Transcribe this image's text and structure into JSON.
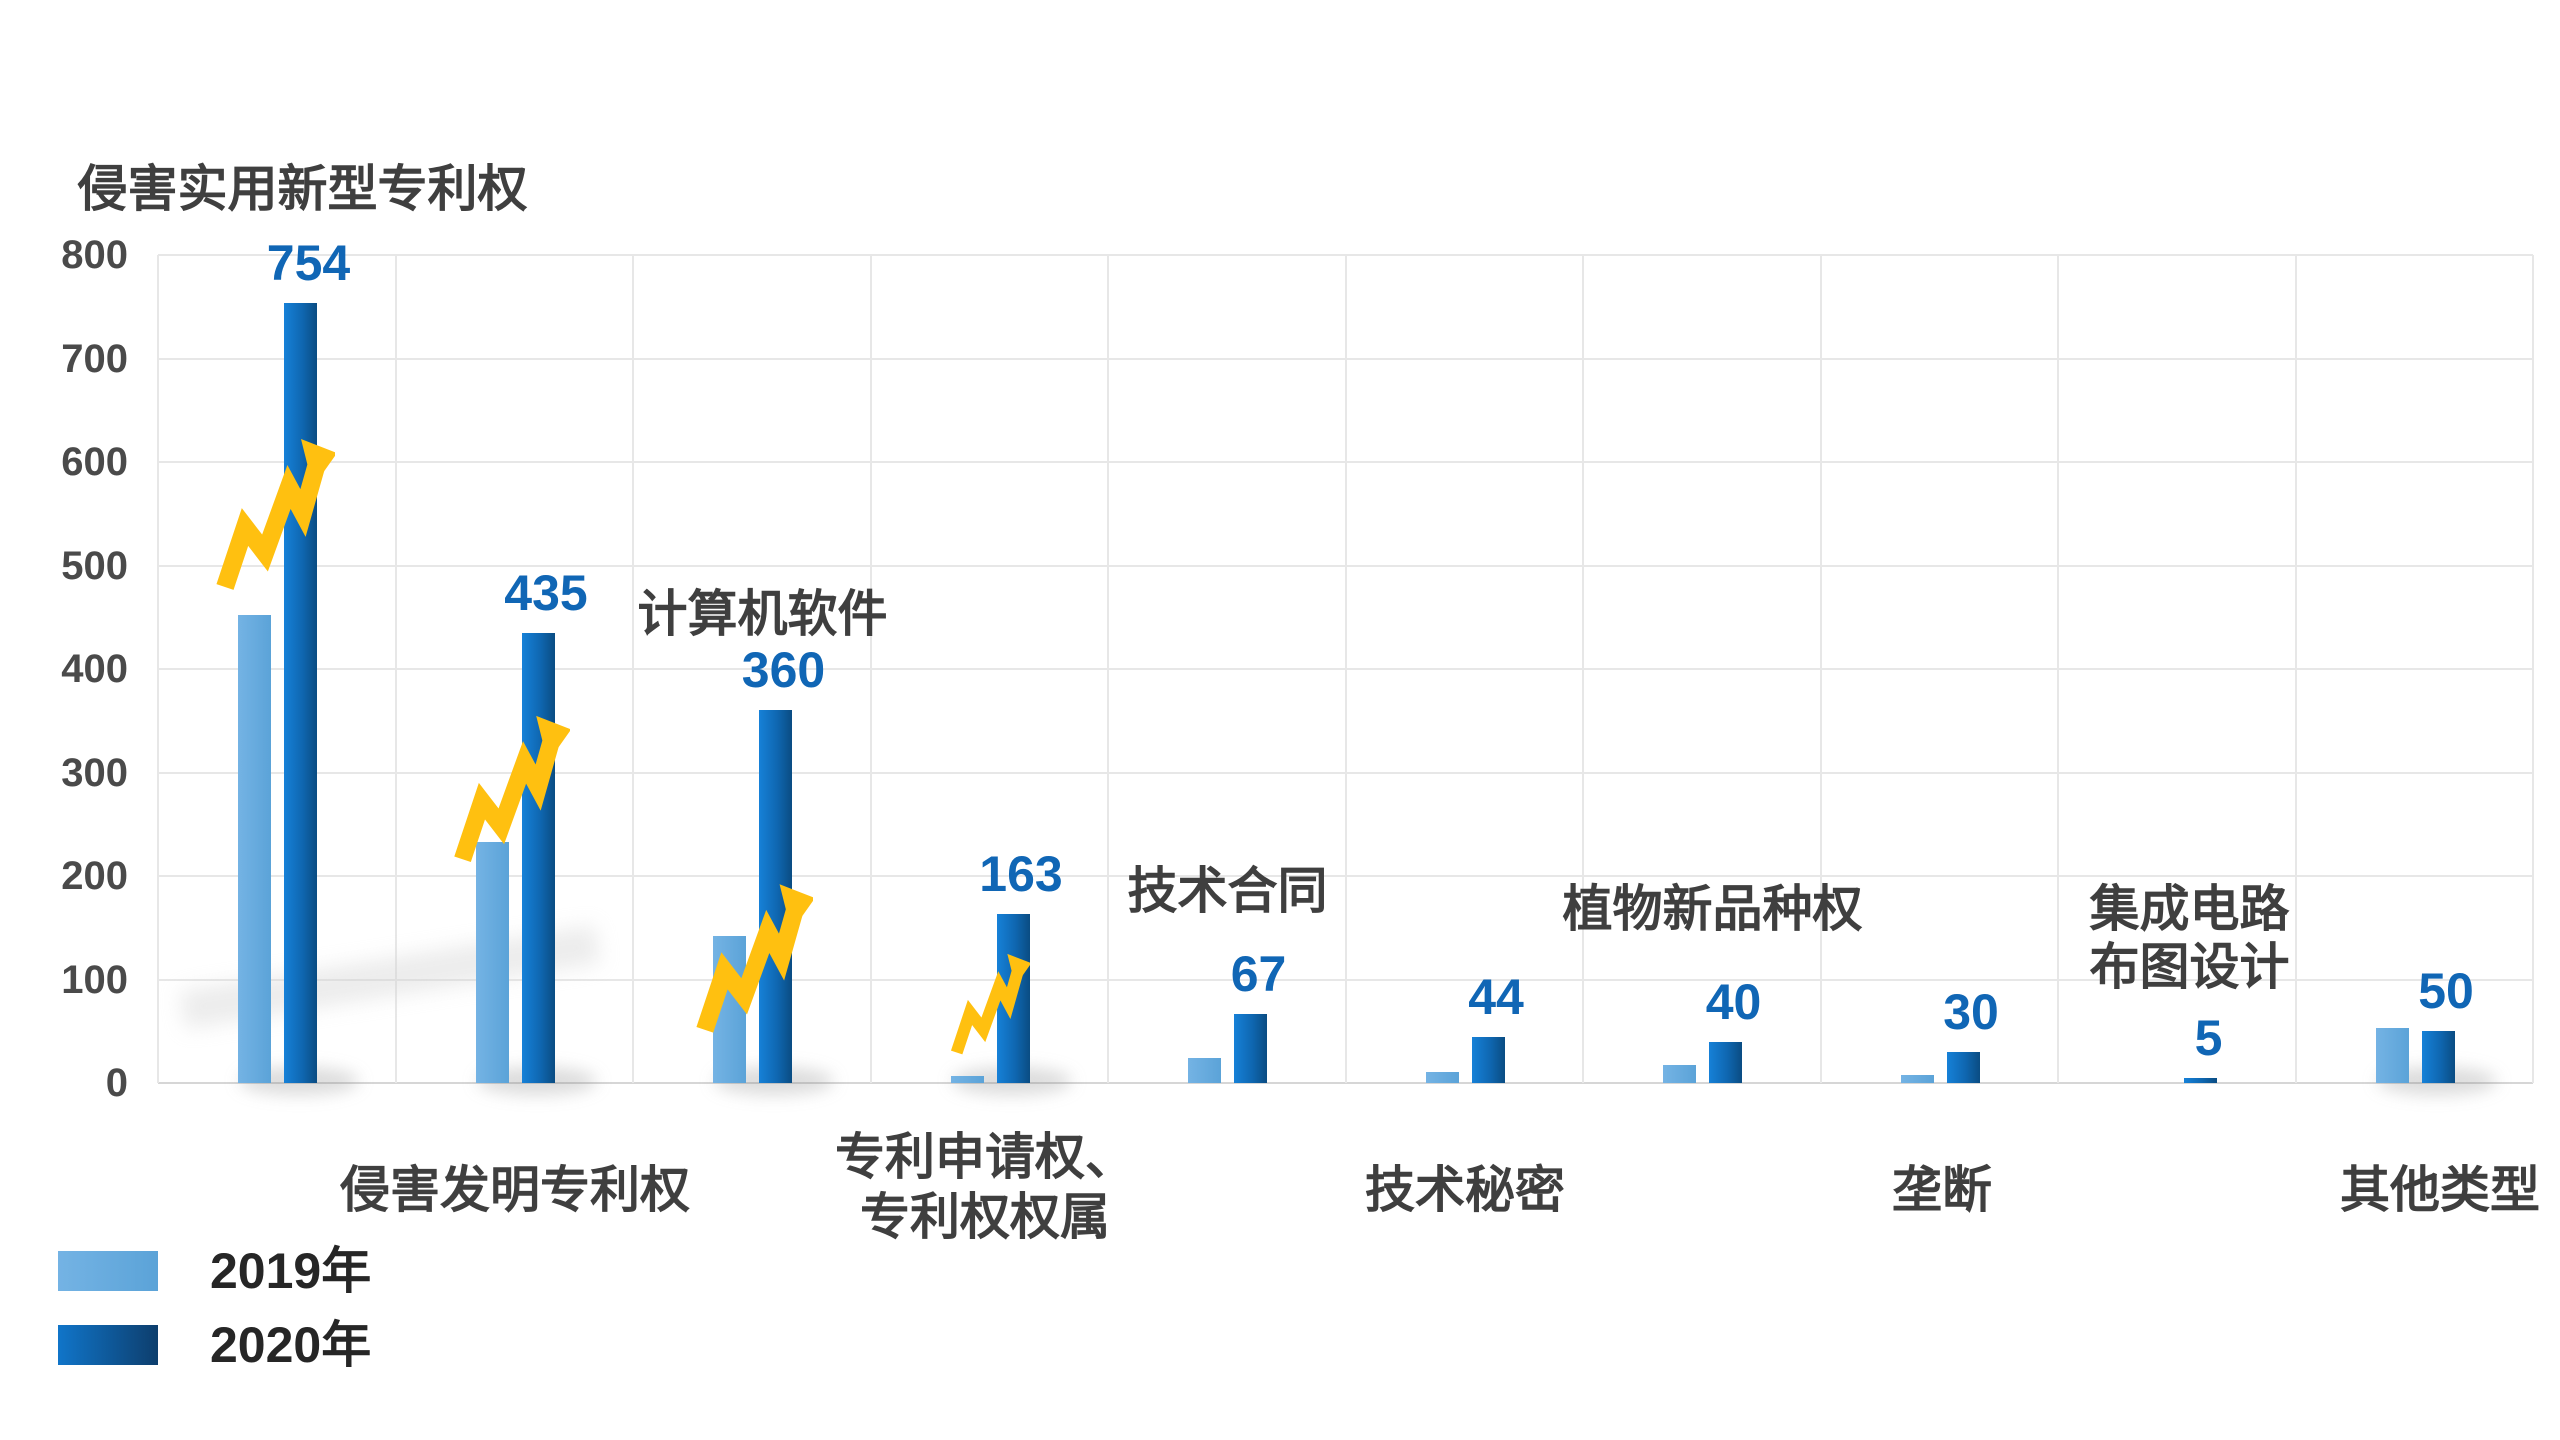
{
  "chart_data": {
    "type": "bar",
    "title": "",
    "categories": [
      "侵害实用新型专利权",
      "侵害发明专利权",
      "计算机软件",
      "专利申请权、专利权权属",
      "技术合同",
      "技术秘密",
      "植物新品种权",
      "垄断",
      "集成电路布图设计",
      "其他类型"
    ],
    "categories_lines": [
      [
        "侵害实用新型专利权"
      ],
      [
        "侵害发明专利权"
      ],
      [
        "计算机软件"
      ],
      [
        "专利申请权、",
        "专利权权属"
      ],
      [
        "技术合同"
      ],
      [
        "技术秘密"
      ],
      [
        "植物新品种权"
      ],
      [
        "垄断"
      ],
      [
        "集成电路",
        "布图设计"
      ],
      [
        "其他类型"
      ]
    ],
    "series": [
      {
        "name": "2019年",
        "values": [
          452,
          233,
          142,
          7,
          24,
          11,
          17,
          8,
          0,
          53
        ]
      },
      {
        "name": "2020年",
        "values": [
          754,
          435,
          360,
          163,
          67,
          44,
          40,
          30,
          5,
          50
        ]
      }
    ],
    "value_labels": {
      "series": "2020年",
      "values": [
        "754",
        "435",
        "360",
        "163",
        "67",
        "44",
        "40",
        "30",
        "5",
        "50"
      ]
    },
    "xlabel": "",
    "ylabel": "",
    "ylim": [
      0,
      800
    ],
    "ytick_step": 100,
    "yticks": [
      "0",
      "100",
      "200",
      "300",
      "400",
      "500",
      "600",
      "700",
      "800"
    ],
    "grid": true,
    "legend_position": "bottom-left",
    "annotations": {
      "growth_arrow_groups": [
        0,
        1,
        2,
        3
      ]
    }
  },
  "legend": {
    "items": [
      {
        "label": "2019年",
        "swatch": "light-blue"
      },
      {
        "label": "2020年",
        "swatch": "dark-blue-gradient"
      }
    ]
  },
  "colors": {
    "bar_2019_start": "#74B3E4",
    "bar_2019_end": "#5BA3D8",
    "bar_2020_start": "#1681D8",
    "bar_2020_end": "#0A4C82",
    "value_label": "#1066B5",
    "axis_text": "#4A4A4A",
    "category_text": "#3F3F3F",
    "legend_text": "#262626",
    "gridline": "#E7E7E7",
    "zero_line": "#D6D6D6",
    "growth_arrow": "#FFC010",
    "background": "#FFFFFF"
  }
}
